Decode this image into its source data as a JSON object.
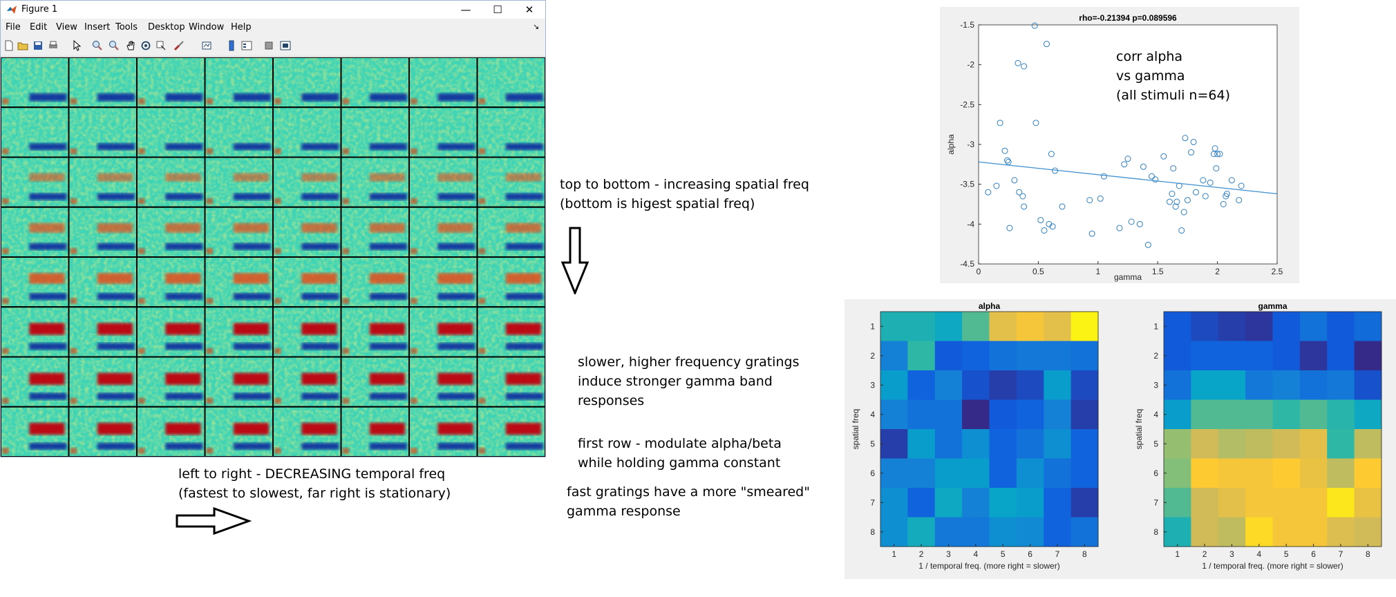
{
  "window": {
    "title": "Figure 1",
    "controls": [
      "—",
      "☐",
      "✕"
    ],
    "menu": [
      "File",
      "Edit",
      "View",
      "Insert",
      "Tools",
      "Desktop",
      "Window",
      "Help"
    ],
    "menu_extra": "↘"
  },
  "toolbar_icons": [
    "new-figure-icon",
    "open-icon",
    "save-icon",
    "print-icon",
    "pointer-icon",
    "zoom-in-icon",
    "zoom-out-icon",
    "pan-icon",
    "rotate-icon",
    "data-cursor-icon",
    "brush-icon",
    "link-icon",
    "colorbar-icon",
    "legend-icon",
    "hide-plot-tools-icon",
    "show-plot-tools-icon"
  ],
  "spectrogram_grid": {
    "rows": 8,
    "cols": 8
  },
  "annotations": {
    "spatial": "top to bottom - increasing spatial freq\n(bottom is higest spatial freq)",
    "temporal": "left to right - DECREASING temporal freq\n(fastest to slowest, far right is stationary)",
    "slower": "slower, higher frequency gratings\ninduce stronger gamma band\nresponses",
    "first_row": "first row - modulate alpha/beta\nwhile holding gamma constant",
    "fast": "fast gratings have a more \"smeared\"\ngamma response"
  },
  "chart_data": [
    {
      "type": "scatter",
      "title": "rho=-0.21394 p=0.089596",
      "xlabel": "gamma",
      "ylabel": "alpha",
      "xlim": [
        0,
        2.5
      ],
      "ylim": [
        -4.5,
        -1.5
      ],
      "xticks": [
        "0",
        "0.5",
        "1",
        "1.5",
        "2",
        "2.5"
      ],
      "yticks": [
        "-1.5",
        "-2",
        "-2.5",
        "-3",
        "-3.5",
        "-4",
        "-4.5"
      ],
      "annotation": "corr alpha\nvs gamma\n(all stimuli n=64)",
      "fit_line": {
        "x": [
          0,
          2.5
        ],
        "y": [
          -3.22,
          -3.62
        ]
      },
      "points": [
        [
          0.08,
          -3.6
        ],
        [
          0.15,
          -3.52
        ],
        [
          0.18,
          -2.73
        ],
        [
          0.22,
          -3.08
        ],
        [
          0.24,
          -3.2
        ],
        [
          0.25,
          -3.22
        ],
        [
          0.26,
          -4.05
        ],
        [
          0.3,
          -3.45
        ],
        [
          0.33,
          -1.98
        ],
        [
          0.34,
          -3.6
        ],
        [
          0.37,
          -3.65
        ],
        [
          0.38,
          -2.02
        ],
        [
          0.38,
          -3.78
        ],
        [
          0.47,
          -1.51
        ],
        [
          0.48,
          -2.73
        ],
        [
          0.52,
          -3.95
        ],
        [
          0.55,
          -4.08
        ],
        [
          0.57,
          -1.74
        ],
        [
          0.59,
          -4.0
        ],
        [
          0.61,
          -3.12
        ],
        [
          0.62,
          -4.03
        ],
        [
          0.64,
          -3.33
        ],
        [
          0.7,
          -3.78
        ],
        [
          0.93,
          -3.7
        ],
        [
          0.95,
          -4.12
        ],
        [
          1.02,
          -3.68
        ],
        [
          1.05,
          -3.4
        ],
        [
          1.18,
          -4.05
        ],
        [
          1.22,
          -3.25
        ],
        [
          1.25,
          -3.18
        ],
        [
          1.28,
          -3.97
        ],
        [
          1.35,
          -4.0
        ],
        [
          1.38,
          -3.28
        ],
        [
          1.42,
          -4.26
        ],
        [
          1.45,
          -3.4
        ],
        [
          1.48,
          -3.44
        ],
        [
          1.55,
          -3.15
        ],
        [
          1.6,
          -3.72
        ],
        [
          1.62,
          -3.62
        ],
        [
          1.63,
          -3.3
        ],
        [
          1.65,
          -3.78
        ],
        [
          1.66,
          -3.72
        ],
        [
          1.68,
          -3.52
        ],
        [
          1.7,
          -4.08
        ],
        [
          1.72,
          -3.85
        ],
        [
          1.73,
          -2.92
        ],
        [
          1.75,
          -3.7
        ],
        [
          1.78,
          -3.1
        ],
        [
          1.8,
          -2.97
        ],
        [
          1.82,
          -3.6
        ],
        [
          1.88,
          -3.45
        ],
        [
          1.9,
          -3.65
        ],
        [
          1.94,
          -3.48
        ],
        [
          1.97,
          -3.12
        ],
        [
          1.98,
          -3.05
        ],
        [
          1.99,
          -3.3
        ],
        [
          2.0,
          -3.12
        ],
        [
          2.02,
          -3.12
        ],
        [
          2.05,
          -3.75
        ],
        [
          2.07,
          -3.65
        ],
        [
          2.08,
          -3.62
        ],
        [
          2.12,
          -3.45
        ],
        [
          2.18,
          -3.7
        ],
        [
          2.2,
          -3.52
        ]
      ]
    },
    {
      "type": "heatmap",
      "title": "alpha",
      "xlabel": "1 / temporal freq. (more right = slower)",
      "ylabel": "spatial freq",
      "x": [
        "1",
        "2",
        "3",
        "4",
        "5",
        "6",
        "7",
        "8"
      ],
      "y": [
        "1",
        "2",
        "3",
        "4",
        "5",
        "6",
        "7",
        "8"
      ],
      "colormap": [
        "#352a87",
        "#0f5cdd",
        "#1481d6",
        "#06a4ca",
        "#2eb7a4",
        "#87bf77",
        "#d1bb59",
        "#fec832",
        "#f9fb0e"
      ],
      "values": [
        [
          0.45,
          0.45,
          0.4,
          0.55,
          0.8,
          0.85,
          0.8,
          0.98
        ],
        [
          0.25,
          0.5,
          0.12,
          0.15,
          0.2,
          0.22,
          0.22,
          0.2
        ],
        [
          0.35,
          0.15,
          0.25,
          0.1,
          0.05,
          0.08,
          0.35,
          0.08
        ],
        [
          0.25,
          0.2,
          0.2,
          0.0,
          0.12,
          0.15,
          0.25,
          0.05
        ],
        [
          0.05,
          0.35,
          0.2,
          0.3,
          0.15,
          0.2,
          0.3,
          0.15
        ],
        [
          0.25,
          0.25,
          0.35,
          0.35,
          0.15,
          0.3,
          0.2,
          0.15
        ],
        [
          0.3,
          0.15,
          0.4,
          0.25,
          0.38,
          0.35,
          0.15,
          0.05
        ],
        [
          0.3,
          0.42,
          0.22,
          0.22,
          0.3,
          0.28,
          0.15,
          0.2
        ]
      ]
    },
    {
      "type": "heatmap",
      "title": "gamma",
      "xlabel": "1 / temporal freq. (more right = slower)",
      "ylabel": "spatial freq",
      "x": [
        "1",
        "2",
        "3",
        "4",
        "5",
        "6",
        "7",
        "8"
      ],
      "y": [
        "1",
        "2",
        "3",
        "4",
        "5",
        "6",
        "7",
        "8"
      ],
      "colormap": [
        "#352a87",
        "#0f5cdd",
        "#1481d6",
        "#06a4ca",
        "#2eb7a4",
        "#87bf77",
        "#d1bb59",
        "#fec832",
        "#f9fb0e"
      ],
      "values": [
        [
          0.12,
          0.08,
          0.05,
          0.03,
          0.12,
          0.2,
          0.12,
          0.18
        ],
        [
          0.12,
          0.15,
          0.15,
          0.15,
          0.12,
          0.03,
          0.12,
          0.0
        ],
        [
          0.2,
          0.38,
          0.38,
          0.22,
          0.25,
          0.2,
          0.22,
          0.1
        ],
        [
          0.35,
          0.55,
          0.55,
          0.55,
          0.5,
          0.55,
          0.48,
          0.4
        ],
        [
          0.65,
          0.75,
          0.7,
          0.72,
          0.75,
          0.8,
          0.5,
          0.72
        ],
        [
          0.62,
          0.88,
          0.85,
          0.85,
          0.88,
          0.82,
          0.72,
          0.88
        ],
        [
          0.55,
          0.75,
          0.8,
          0.85,
          0.85,
          0.85,
          0.95,
          0.82
        ],
        [
          0.45,
          0.75,
          0.72,
          0.92,
          0.85,
          0.85,
          0.78,
          0.75
        ]
      ]
    }
  ]
}
